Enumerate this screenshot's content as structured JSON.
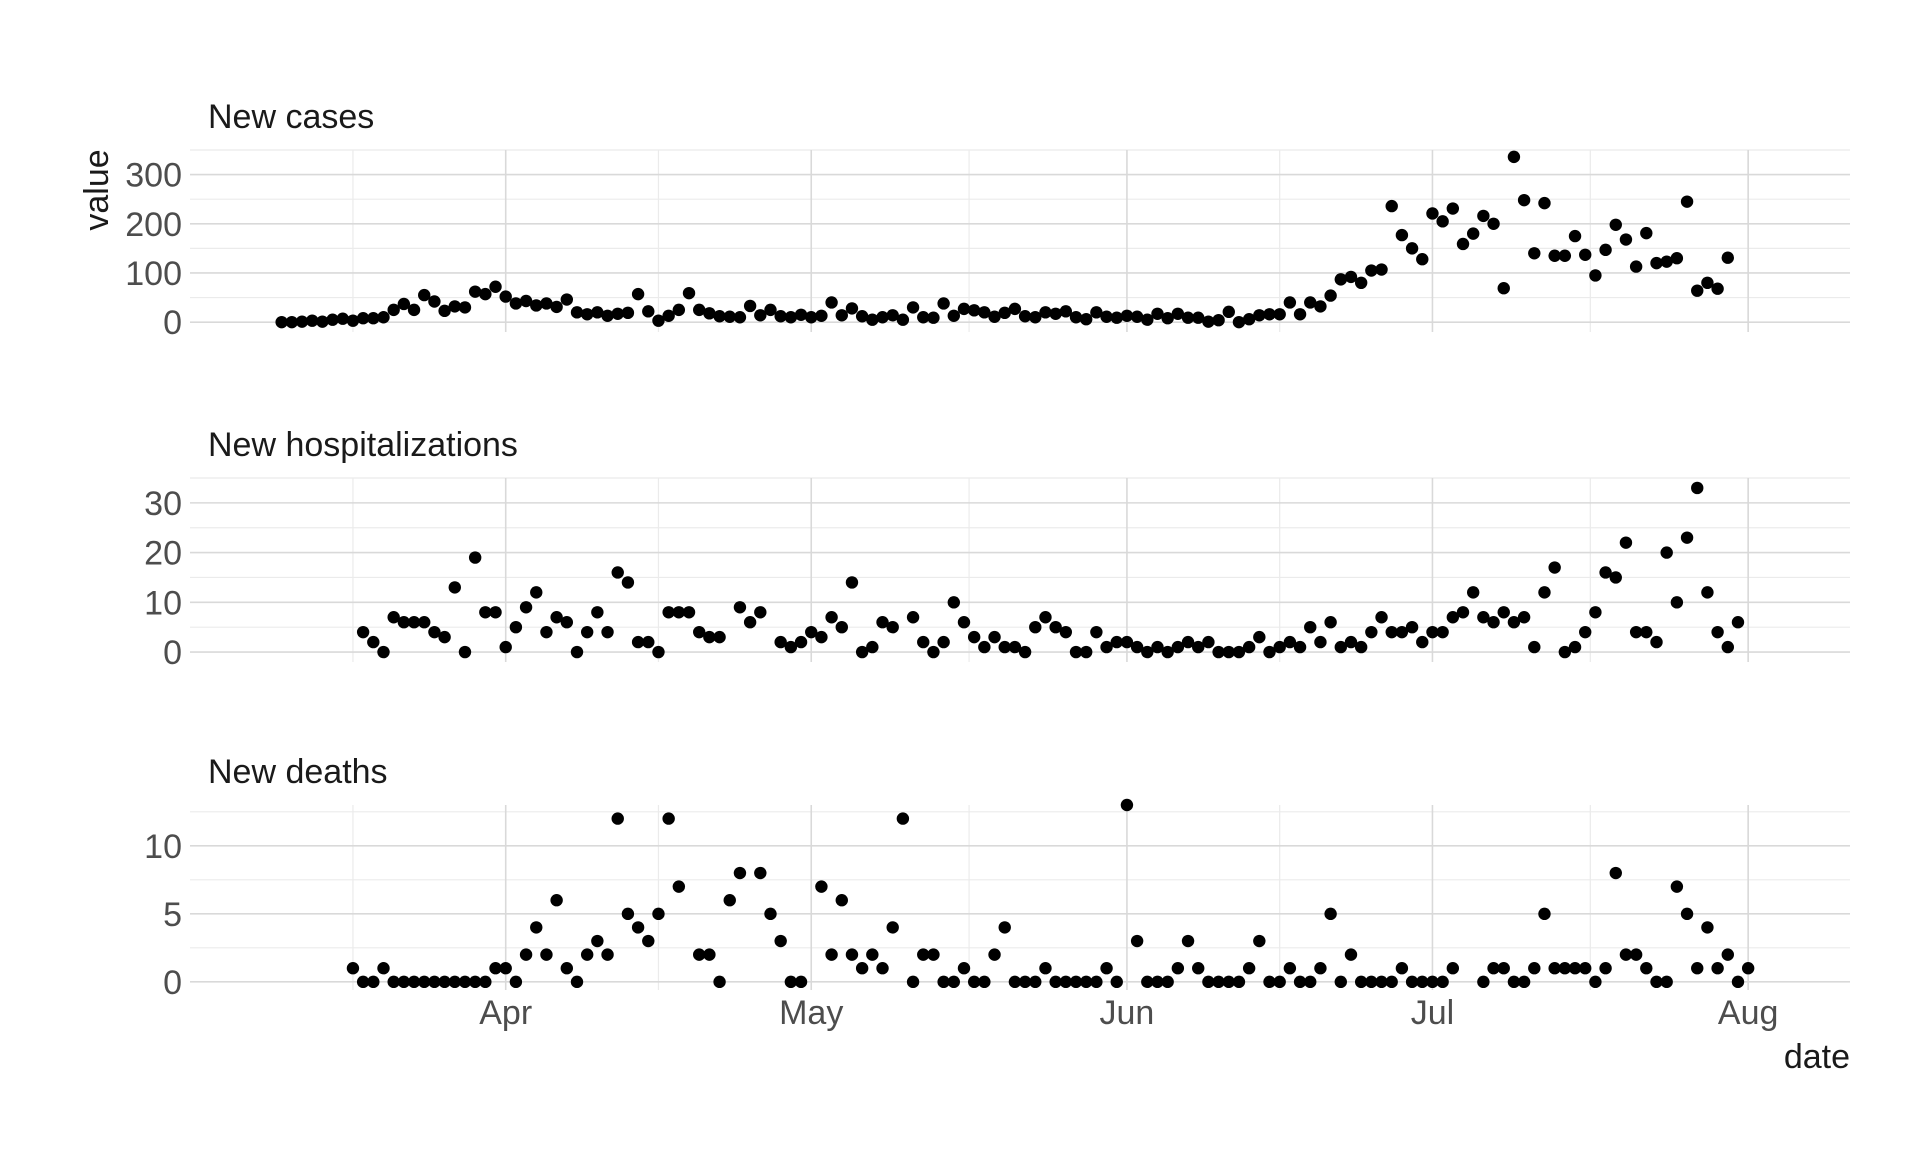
{
  "chart_data": {
    "type": "scatter",
    "xlabel": "date",
    "ylabel": "value",
    "x_start": "2020-03-10",
    "x_ticks": [
      {
        "label": "Apr",
        "date": "2020-04-01"
      },
      {
        "label": "May",
        "date": "2020-05-01"
      },
      {
        "label": "Jun",
        "date": "2020-06-01"
      },
      {
        "label": "Jul",
        "date": "2020-07-01"
      },
      {
        "label": "Aug",
        "date": "2020-08-01"
      }
    ],
    "xlim": [
      "2020-03-01",
      "2020-08-11"
    ],
    "grid": true,
    "panels": [
      {
        "title": "New cases",
        "ylim": [
          -20,
          350
        ],
        "y_ticks": [
          0,
          100,
          200,
          300
        ],
        "values": [
          0,
          0,
          1,
          3,
          1,
          5,
          7,
          3,
          8,
          8,
          10,
          25,
          37,
          25,
          55,
          42,
          23,
          32,
          30,
          62,
          57,
          72,
          52,
          38,
          43,
          34,
          38,
          31,
          46,
          20,
          16,
          20,
          13,
          17,
          19,
          57,
          22,
          3,
          13,
          25,
          59,
          25,
          18,
          12,
          11,
          10,
          33,
          14,
          25,
          12,
          10,
          15,
          10,
          13,
          40,
          14,
          28,
          12,
          5,
          10,
          14,
          5,
          30,
          10,
          9,
          38,
          13,
          27,
          24,
          20,
          11,
          19,
          27,
          12,
          10,
          20,
          17,
          22,
          10,
          6,
          20,
          11,
          9,
          13,
          11,
          5,
          17,
          8,
          17,
          9,
          9,
          1,
          4,
          21,
          0,
          6,
          14,
          16,
          16,
          40,
          16,
          40,
          32,
          54,
          87,
          92,
          80,
          105,
          107,
          236,
          177,
          150,
          128,
          221,
          205,
          231,
          159,
          180,
          216,
          200,
          69,
          336,
          248,
          140,
          242,
          135,
          135,
          175,
          137,
          95,
          147,
          198,
          168,
          113,
          181,
          120,
          123,
          130,
          245,
          64,
          80,
          68,
          131
        ]
      },
      {
        "title": "New hospitalizations",
        "ylim": [
          -2,
          35
        ],
        "y_ticks": [
          0,
          10,
          20,
          30
        ],
        "values": [
          null,
          null,
          null,
          null,
          null,
          null,
          null,
          null,
          4,
          2,
          0,
          7,
          6,
          6,
          6,
          4,
          3,
          13,
          0,
          19,
          8,
          8,
          1,
          5,
          9,
          12,
          4,
          7,
          6,
          0,
          4,
          8,
          4,
          16,
          14,
          2,
          2,
          0,
          8,
          8,
          8,
          4,
          3,
          3,
          null,
          9,
          6,
          8,
          null,
          2,
          1,
          2,
          4,
          3,
          7,
          5,
          14,
          0,
          1,
          6,
          5,
          null,
          7,
          2,
          0,
          2,
          10,
          6,
          3,
          1,
          3,
          1,
          1,
          0,
          5,
          7,
          5,
          4,
          0,
          0,
          4,
          1,
          2,
          2,
          1,
          0,
          1,
          0,
          1,
          2,
          1,
          2,
          0,
          0,
          0,
          1,
          3,
          0,
          1,
          2,
          1,
          5,
          2,
          6,
          1,
          2,
          1,
          4,
          7,
          4,
          4,
          5,
          2,
          4,
          4,
          7,
          8,
          12,
          7,
          6,
          8,
          6,
          7,
          1,
          12,
          17,
          0,
          1,
          4,
          8,
          16,
          15,
          22,
          4,
          4,
          2,
          20,
          10,
          23,
          33,
          12,
          4,
          1,
          6
        ]
      },
      {
        "title": "New deaths",
        "ylim": [
          -0.6,
          13
        ],
        "y_ticks": [
          0,
          5,
          10
        ],
        "values": [
          null,
          null,
          null,
          null,
          null,
          null,
          null,
          1,
          0,
          0,
          1,
          0,
          0,
          0,
          0,
          0,
          0,
          0,
          0,
          0,
          0,
          1,
          1,
          0,
          2,
          4,
          2,
          6,
          1,
          0,
          2,
          3,
          2,
          12,
          5,
          4,
          3,
          5,
          12,
          7,
          null,
          2,
          2,
          0,
          6,
          8,
          null,
          8,
          5,
          3,
          0,
          0,
          null,
          7,
          2,
          6,
          2,
          1,
          2,
          1,
          4,
          12,
          0,
          2,
          2,
          0,
          0,
          1,
          0,
          0,
          2,
          4,
          0,
          0,
          0,
          1,
          0,
          0,
          0,
          0,
          0,
          1,
          0,
          13,
          3,
          0,
          0,
          0,
          1,
          3,
          1,
          0,
          0,
          0,
          0,
          1,
          3,
          0,
          0,
          1,
          0,
          0,
          1,
          5,
          0,
          2,
          0,
          0,
          0,
          0,
          1,
          0,
          0,
          0,
          0,
          1,
          null,
          null,
          0,
          1,
          1,
          0,
          0,
          1,
          5,
          1,
          1,
          1,
          1,
          0,
          1,
          8,
          2,
          2,
          1,
          0,
          0,
          7,
          5,
          1,
          4,
          1,
          2,
          0,
          1
        ]
      }
    ]
  }
}
